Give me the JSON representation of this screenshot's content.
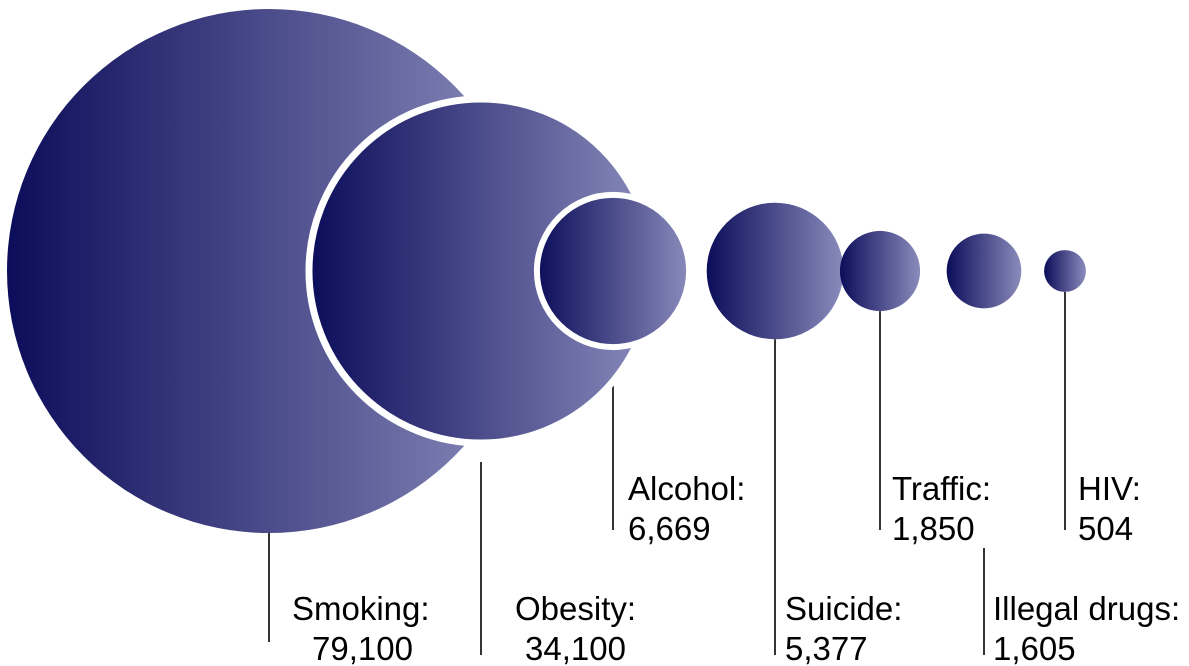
{
  "chart_data": {
    "type": "bubble",
    "title": "",
    "xlabel": "",
    "ylabel": "",
    "series": [
      {
        "category": "Smoking",
        "label": "Smoking:",
        "value_text": "79,100",
        "value": 79100
      },
      {
        "category": "Obesity",
        "label": "Obesity:",
        "value_text": "34,100",
        "value": 34100
      },
      {
        "category": "Alcohol",
        "label": "Alcohol:",
        "value_text": "6,669",
        "value": 6669
      },
      {
        "category": "Suicide",
        "label": "Suicide:",
        "value_text": "5,377",
        "value": 5377
      },
      {
        "category": "Traffic",
        "label": "Traffic:",
        "value_text": "1,850",
        "value": 1850
      },
      {
        "category": "Illegal drugs",
        "label": "Illegal drugs:",
        "value_text": "1,605",
        "value": 1605
      },
      {
        "category": "HIV",
        "label": "HIV:",
        "value_text": "504",
        "value": 504
      }
    ],
    "colors": {
      "gradient_start": "#0c0d5a",
      "gradient_end": "#8a8bbb",
      "outline": "#ffffff",
      "leader": "#000000"
    }
  }
}
